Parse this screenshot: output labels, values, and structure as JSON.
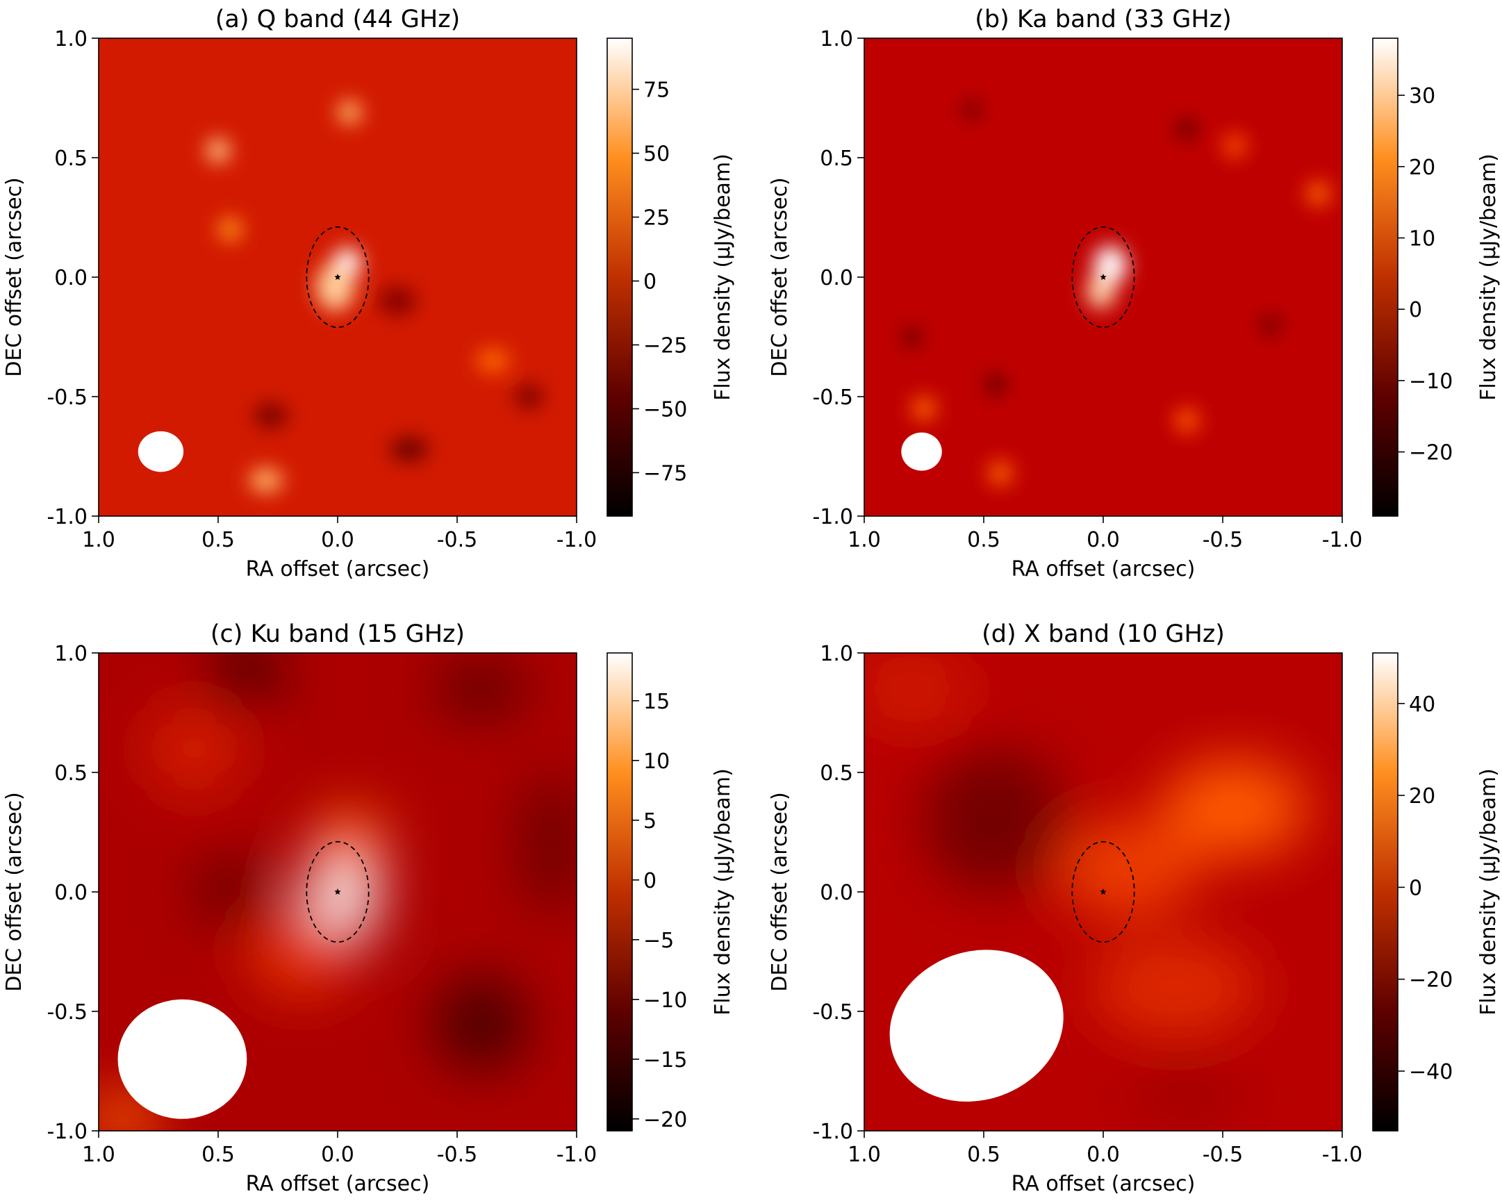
{
  "figure": {
    "colorbar_label": "Flux density (μJy/beam)",
    "colormap": "gist_heat",
    "source_marker": "star",
    "panels_layout": "2x2"
  },
  "chart_data": [
    {
      "type": "heatmap",
      "title": "(a) Q band (44 GHz)",
      "xlabel": "RA offset (arcsec)",
      "ylabel": "DEC offset (arcsec)",
      "xlim": [
        1.0,
        -1.0
      ],
      "ylim": [
        -1.0,
        1.0
      ],
      "x_ticks": [
        "1.0",
        "0.5",
        "0.0",
        "-0.5",
        "-1.0"
      ],
      "y_ticks": [
        "-1.0",
        "-0.5",
        "0.0",
        "0.5",
        "1.0"
      ],
      "colorbar": {
        "label": "Flux density (μJy/beam)",
        "range": [
          -92,
          95
        ],
        "ticks": [
          -75,
          -50,
          -25,
          0,
          25,
          50,
          75
        ],
        "tick_labels": [
          "−75",
          "−50",
          "−25",
          "0",
          "25",
          "50",
          "75"
        ]
      },
      "background_level": 0.55,
      "source": {
        "ra": 0.0,
        "dec": 0.0
      },
      "source_ellipse": {
        "ra": 0.0,
        "dec": 0.0,
        "width": 0.13,
        "height": 0.21
      },
      "beam": {
        "ra": 0.74,
        "dec": -0.73,
        "width": 0.095,
        "height": 0.085,
        "angle": 0
      },
      "blobs": [
        {
          "ra": -0.04,
          "dec": 0.06,
          "w": 0.06,
          "h": 0.06,
          "level": 1.0
        },
        {
          "ra": 0.01,
          "dec": -0.04,
          "w": 0.08,
          "h": 0.1,
          "level": 0.9
        },
        {
          "ra": 0.5,
          "dec": 0.53,
          "w": 0.05,
          "h": 0.05,
          "level": 0.88
        },
        {
          "ra": -0.05,
          "dec": 0.69,
          "w": 0.05,
          "h": 0.05,
          "level": 0.85
        },
        {
          "ra": 0.45,
          "dec": 0.2,
          "w": 0.05,
          "h": 0.05,
          "level": 0.78
        },
        {
          "ra": 0.3,
          "dec": -0.85,
          "w": 0.07,
          "h": 0.05,
          "level": 0.85
        },
        {
          "ra": -0.65,
          "dec": -0.35,
          "w": 0.07,
          "h": 0.05,
          "level": 0.7
        },
        {
          "ra": 0.28,
          "dec": -0.58,
          "w": 0.07,
          "h": 0.05,
          "level": 0.3
        },
        {
          "ra": -0.3,
          "dec": -0.72,
          "w": 0.08,
          "h": 0.05,
          "level": 0.28
        },
        {
          "ra": -0.25,
          "dec": -0.1,
          "w": 0.08,
          "h": 0.06,
          "level": 0.35
        },
        {
          "ra": -0.8,
          "dec": -0.5,
          "w": 0.06,
          "h": 0.05,
          "level": 0.32
        }
      ]
    },
    {
      "type": "heatmap",
      "title": "(b) Ka band (33 GHz)",
      "xlabel": "RA offset (arcsec)",
      "ylabel": "DEC offset (arcsec)",
      "xlim": [
        1.0,
        -1.0
      ],
      "ylim": [
        -1.0,
        1.0
      ],
      "x_ticks": [
        "1.0",
        "0.5",
        "0.0",
        "-0.5",
        "-1.0"
      ],
      "y_ticks": [
        "-1.0",
        "-0.5",
        "0.0",
        "0.5",
        "1.0"
      ],
      "colorbar": {
        "label": "Flux density (μJy/beam)",
        "range": [
          -29,
          38
        ],
        "ticks": [
          -20,
          -10,
          0,
          10,
          20,
          30
        ],
        "tick_labels": [
          "−20",
          "−10",
          "0",
          "10",
          "20",
          "30"
        ]
      },
      "background_level": 0.5,
      "source": {
        "ra": 0.0,
        "dec": 0.0
      },
      "source_ellipse": {
        "ra": 0.0,
        "dec": 0.0,
        "width": 0.13,
        "height": 0.21
      },
      "beam": {
        "ra": 0.76,
        "dec": -0.73,
        "width": 0.085,
        "height": 0.08,
        "angle": 0
      },
      "blobs": [
        {
          "ra": -0.03,
          "dec": 0.05,
          "w": 0.07,
          "h": 0.08,
          "level": 1.0
        },
        {
          "ra": 0.01,
          "dec": -0.06,
          "w": 0.06,
          "h": 0.07,
          "level": 0.92
        },
        {
          "ra": 0.75,
          "dec": -0.55,
          "w": 0.05,
          "h": 0.05,
          "level": 0.7
        },
        {
          "ra": 0.43,
          "dec": -0.82,
          "w": 0.05,
          "h": 0.05,
          "level": 0.7
        },
        {
          "ra": -0.35,
          "dec": -0.6,
          "w": 0.05,
          "h": 0.05,
          "level": 0.68
        },
        {
          "ra": -0.9,
          "dec": 0.35,
          "w": 0.05,
          "h": 0.05,
          "level": 0.7
        },
        {
          "ra": -0.55,
          "dec": 0.55,
          "w": 0.05,
          "h": 0.05,
          "level": 0.65
        },
        {
          "ra": 0.45,
          "dec": -0.45,
          "w": 0.04,
          "h": 0.04,
          "level": 0.2
        },
        {
          "ra": 0.8,
          "dec": -0.25,
          "w": 0.04,
          "h": 0.04,
          "level": 0.25
        },
        {
          "ra": -0.35,
          "dec": 0.62,
          "w": 0.04,
          "h": 0.04,
          "level": 0.22
        },
        {
          "ra": 0.55,
          "dec": 0.7,
          "w": 0.04,
          "h": 0.04,
          "level": 0.28
        },
        {
          "ra": -0.7,
          "dec": -0.2,
          "w": 0.05,
          "h": 0.04,
          "level": 0.3
        }
      ]
    },
    {
      "type": "heatmap",
      "title": "(c) Ku band (15 GHz)",
      "xlabel": "RA offset (arcsec)",
      "ylabel": "DEC offset (arcsec)",
      "xlim": [
        1.0,
        -1.0
      ],
      "ylim": [
        -1.0,
        1.0
      ],
      "x_ticks": [
        "1.0",
        "0.5",
        "0.0",
        "-0.5",
        "-1.0"
      ],
      "y_ticks": [
        "-1.0",
        "-0.5",
        "0.0",
        "0.5",
        "1.0"
      ],
      "colorbar": {
        "label": "Flux density (μJy/beam)",
        "range": [
          -21,
          19
        ],
        "ticks": [
          -20,
          -15,
          -10,
          -5,
          0,
          5,
          10,
          15
        ],
        "tick_labels": [
          "−20",
          "−15",
          "−10",
          "−5",
          "0",
          "5",
          "10",
          "15"
        ]
      },
      "background_level": 0.45,
      "source": {
        "ra": 0.0,
        "dec": 0.0
      },
      "source_ellipse": {
        "ra": 0.0,
        "dec": 0.0,
        "width": 0.13,
        "height": 0.21
      },
      "beam": {
        "ra": 0.65,
        "dec": -0.7,
        "width": 0.27,
        "height": 0.25,
        "angle": 0
      },
      "blobs": [
        {
          "ra": -0.02,
          "dec": -0.02,
          "w": 0.15,
          "h": 0.18,
          "level": 1.0
        },
        {
          "ra": -0.05,
          "dec": 0.22,
          "w": 0.15,
          "h": 0.12,
          "level": 0.72
        },
        {
          "ra": 0.15,
          "dec": -0.25,
          "w": 0.22,
          "h": 0.18,
          "level": 0.6
        },
        {
          "ra": 0.6,
          "dec": 0.6,
          "w": 0.2,
          "h": 0.2,
          "level": 0.55
        },
        {
          "ra": 0.4,
          "dec": 0.9,
          "w": 0.15,
          "h": 0.1,
          "level": 0.05
        },
        {
          "ra": -0.6,
          "dec": -0.55,
          "w": 0.2,
          "h": 0.2,
          "level": 0.2
        },
        {
          "ra": 0.45,
          "dec": 0.0,
          "w": 0.15,
          "h": 0.15,
          "level": 0.28
        },
        {
          "ra": -0.6,
          "dec": 0.85,
          "w": 0.2,
          "h": 0.12,
          "level": 0.25
        },
        {
          "ra": -0.9,
          "dec": 0.2,
          "w": 0.15,
          "h": 0.3,
          "level": 0.3
        },
        {
          "ra": 0.9,
          "dec": -0.95,
          "w": 0.15,
          "h": 0.1,
          "level": 0.7
        }
      ]
    },
    {
      "type": "heatmap",
      "title": "(d) X band (10 GHz)",
      "xlabel": "RA offset (arcsec)",
      "ylabel": "DEC offset (arcsec)",
      "xlim": [
        1.0,
        -1.0
      ],
      "ylim": [
        -1.0,
        1.0
      ],
      "x_ticks": [
        "1.0",
        "0.5",
        "0.0",
        "-0.5",
        "-1.0"
      ],
      "y_ticks": [
        "-1.0",
        "-0.5",
        "0.0",
        "0.5",
        "1.0"
      ],
      "colorbar": {
        "label": "Flux density (μJy/beam)",
        "range": [
          -53,
          51
        ],
        "ticks": [
          -40,
          -20,
          0,
          20,
          40
        ],
        "tick_labels": [
          "−40",
          "−20",
          "0",
          "20",
          "40"
        ]
      },
      "background_level": 0.48,
      "source": {
        "ra": 0.0,
        "dec": 0.0
      },
      "source_ellipse": {
        "ra": 0.0,
        "dec": 0.0,
        "width": 0.13,
        "height": 0.21
      },
      "beam": {
        "ra": 0.53,
        "dec": -0.56,
        "width": 0.37,
        "height": 0.31,
        "angle": -20
      },
      "blobs": [
        {
          "ra": -0.55,
          "dec": 0.35,
          "w": 0.3,
          "h": 0.2,
          "level": 0.68
        },
        {
          "ra": -0.1,
          "dec": 0.1,
          "w": 0.3,
          "h": 0.2,
          "level": 0.62
        },
        {
          "ra": -0.3,
          "dec": -0.4,
          "w": 0.35,
          "h": 0.2,
          "level": 0.58
        },
        {
          "ra": 0.45,
          "dec": 0.3,
          "w": 0.3,
          "h": 0.3,
          "level": 0.3
        },
        {
          "ra": 0.8,
          "dec": 0.85,
          "w": 0.25,
          "h": 0.15,
          "level": 0.55
        },
        {
          "ra": -0.35,
          "dec": -0.85,
          "w": 0.25,
          "h": 0.12,
          "level": 0.42
        }
      ]
    }
  ]
}
